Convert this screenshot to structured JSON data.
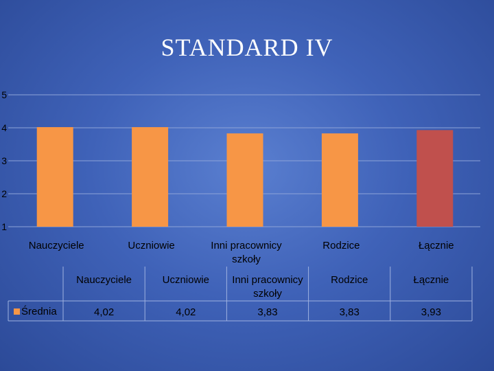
{
  "chart_data": {
    "type": "bar",
    "title": "STANDARD IV",
    "categories": [
      "Nauczyciele",
      "Uczniowie",
      "Inni pracownicy szkoły",
      "Rodzice",
      "Łącznie"
    ],
    "category_lines": [
      [
        "Nauczyciele"
      ],
      [
        "Uczniowie"
      ],
      [
        "Inni pracownicy",
        "szkoły"
      ],
      [
        "Rodzice"
      ],
      [
        "Łącznie"
      ]
    ],
    "series": [
      {
        "name": "Średnia",
        "values": [
          4.02,
          4.02,
          3.83,
          3.83,
          3.93
        ],
        "value_labels": [
          "4,02",
          "4,02",
          "3,83",
          "3,83",
          "3,93"
        ]
      }
    ],
    "ylim": [
      1,
      5
    ],
    "yticks": [
      "1",
      "2",
      "3",
      "4",
      "5"
    ],
    "grid": true,
    "legend": "data-table",
    "colors": {
      "bar_default": "#f79646",
      "bar_highlight": "#c0504d",
      "legend_swatch": "#f79646",
      "gridline": "#8ea4d8"
    },
    "highlight_index": 4
  }
}
